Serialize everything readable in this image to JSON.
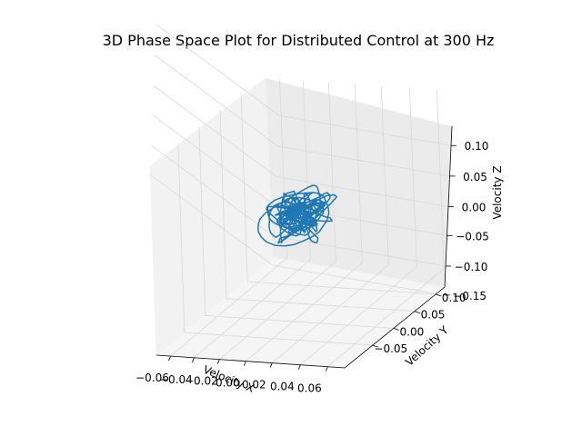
{
  "chart_data": {
    "type": "line",
    "title": "3D Phase Space Plot for Distributed Control at 300 Hz",
    "xlabel": "Velocity X",
    "ylabel": "Velocity Y",
    "zlabel": "Velocity Z",
    "xticks": [
      "−0.06",
      "−0.04",
      "−0.02",
      "0.00",
      "0.02",
      "0.04",
      "0.06"
    ],
    "yticks": [
      "−0.05",
      "0.00",
      "0.05",
      "0.10"
    ],
    "zticks": [
      "0.10",
      "0.05",
      "0.00",
      "−0.05",
      "−0.10",
      "−0.15"
    ],
    "xlim": [
      -0.07,
      0.07
    ],
    "ylim": [
      -0.08,
      0.14
    ],
    "zlim": [
      -0.16,
      0.12
    ],
    "grid": true,
    "series": [
      {
        "color": "#1f77b4"
      }
    ]
  }
}
